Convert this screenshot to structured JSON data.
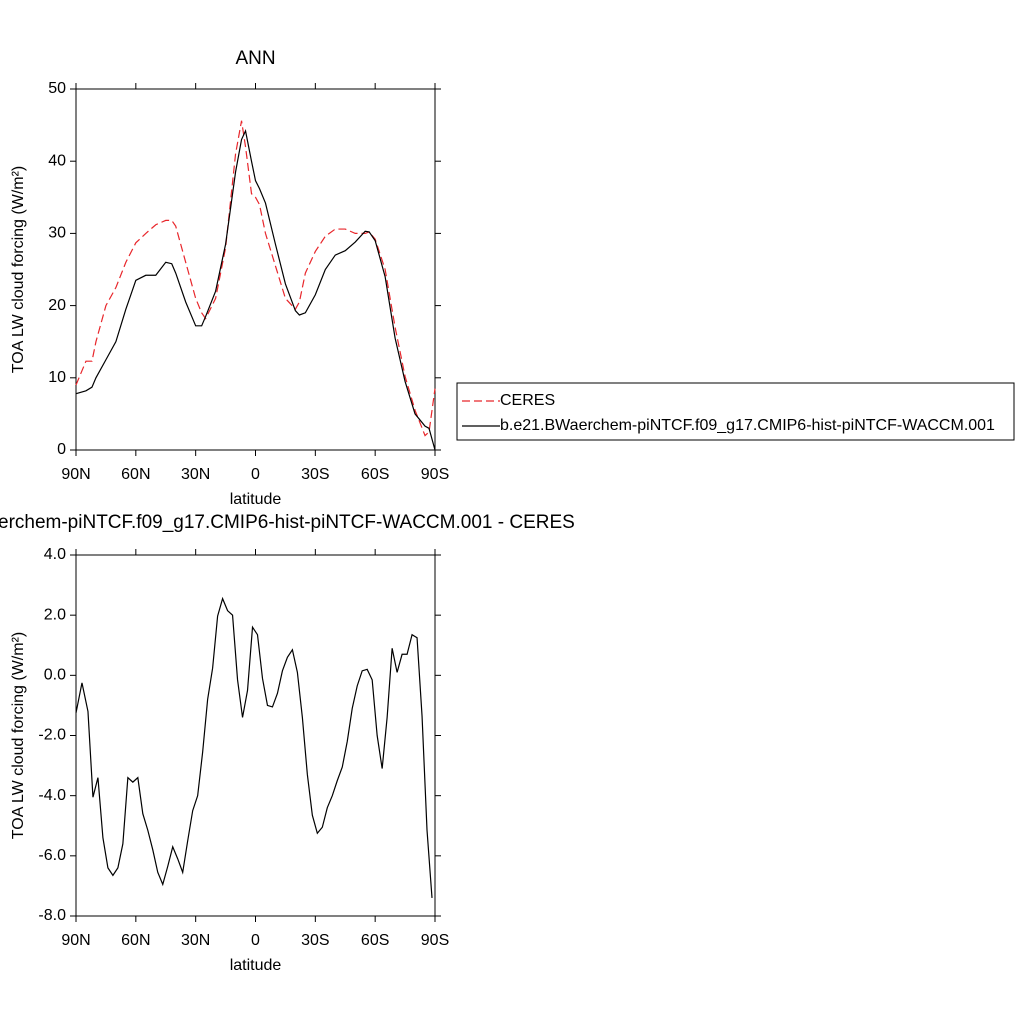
{
  "chart_data": [
    {
      "type": "line",
      "title": "ANN",
      "xlabel": "latitude",
      "ylabel": "TOA LW cloud forcing (W/m²)",
      "x": [
        90,
        85,
        82,
        80,
        75,
        70,
        65,
        60,
        55,
        50,
        45,
        42,
        40,
        35,
        30,
        27,
        25,
        20,
        15,
        10,
        7,
        5,
        2,
        0,
        -2,
        -5,
        -10,
        -15,
        -20,
        -22,
        -25,
        -30,
        -35,
        -40,
        -45,
        -50,
        -55,
        -57,
        -60,
        -65,
        -70,
        -75,
        -80,
        -85,
        -87,
        -90
      ],
      "series": [
        {
          "name": "CERES",
          "color": "#e8262b",
          "line_style": "dashed",
          "values": [
            9,
            12.3,
            12.3,
            15,
            20,
            22.5,
            26,
            28.7,
            30,
            31.2,
            31.8,
            31.8,
            31,
            26,
            21,
            19,
            18.2,
            21,
            28,
            41,
            45.6,
            42,
            35.5,
            35,
            34,
            30,
            25.5,
            21,
            19.5,
            20.5,
            24.5,
            27.5,
            29.6,
            30.6,
            30.6,
            30,
            30,
            30.2,
            29.2,
            25,
            17,
            10.2,
            5.5,
            2,
            2.5,
            8.5
          ]
        },
        {
          "name": "b.e21.BWaerchem-piNTCF.f09_g17.CMIP6-hist-piNTCF-WACCM.001",
          "color": "#000000",
          "line_style": "solid",
          "values": [
            7.8,
            8.2,
            8.7,
            10,
            12.5,
            15,
            19.5,
            23.5,
            24.2,
            24.2,
            26,
            25.8,
            24.5,
            20.5,
            17.2,
            17.2,
            18.5,
            22,
            28.5,
            38.5,
            43,
            44.2,
            40,
            37.3,
            36.2,
            34.2,
            28.5,
            23,
            19.3,
            18.7,
            19,
            21.5,
            25,
            27,
            27.6,
            28.8,
            30.3,
            30.2,
            29,
            24,
            15.5,
            9.5,
            5,
            3.3,
            3,
            0
          ]
        }
      ],
      "xlim": [
        90,
        -90
      ],
      "xticks": [
        {
          "value": 90,
          "label": "90N"
        },
        {
          "value": 60,
          "label": "60N"
        },
        {
          "value": 30,
          "label": "30N"
        },
        0,
        {
          "value": -30,
          "label": "30S"
        },
        {
          "value": -60,
          "label": "60S"
        },
        {
          "value": -90,
          "label": "90S"
        }
      ],
      "ylim": [
        0,
        50
      ],
      "yticks": [
        0,
        10,
        20,
        30,
        40,
        50
      ],
      "legend": "right"
    },
    {
      "type": "line",
      "title": "erchem-piNTCF.f09_g17.CMIP6-hist-piNTCF-WACCM.001 - CERES",
      "xlabel": "latitude",
      "ylabel": "TOA LW cloud forcing (W/m²)",
      "x": [
        90,
        87,
        84,
        81.5,
        79,
        76.5,
        74,
        71.5,
        69,
        66.5,
        64,
        61.5,
        59,
        56.5,
        54,
        51.5,
        49,
        46.5,
        44,
        41.5,
        39,
        36.5,
        34,
        31.5,
        29,
        26.5,
        24,
        21.5,
        19,
        16.5,
        14,
        11.5,
        9,
        6.5,
        4,
        1.5,
        -1,
        -3.5,
        -6,
        -8.5,
        -11,
        -13.5,
        -16,
        -18.5,
        -21,
        -23.5,
        -26,
        -28.5,
        -31,
        -33.5,
        -36,
        -38.5,
        -41,
        -43.5,
        -46,
        -48.5,
        -51,
        -53.5,
        -56,
        -58.5,
        -61,
        -63.5,
        -66,
        -68.5,
        -71,
        -73.5,
        -76,
        -78.5,
        -81,
        -83.5,
        -86,
        -88.5
      ],
      "series": [
        {
          "color": "#000000",
          "line_style": "solid",
          "values": [
            -1.25,
            -0.25,
            -1.2,
            -4.05,
            -3.4,
            -5.4,
            -6.4,
            -6.65,
            -6.4,
            -5.6,
            -3.4,
            -3.55,
            -3.4,
            -4.6,
            -5.15,
            -5.8,
            -6.55,
            -6.95,
            -6.35,
            -5.7,
            -6.1,
            -6.55,
            -5.5,
            -4.5,
            -4.0,
            -2.55,
            -0.8,
            0.24,
            1.97,
            2.55,
            2.15,
            2.0,
            -0.15,
            -1.4,
            -0.5,
            1.6,
            1.35,
            -0.1,
            -1.0,
            -1.05,
            -0.6,
            0.15,
            0.6,
            0.85,
            0.1,
            -1.4,
            -3.3,
            -4.65,
            -5.25,
            -5.05,
            -4.4,
            -4.0,
            -3.5,
            -3.05,
            -2.2,
            -1.1,
            -0.35,
            0.15,
            0.2,
            -0.15,
            -2.0,
            -3.1,
            -1.4,
            0.9,
            0.1,
            0.7,
            0.7,
            1.35,
            1.25,
            -1.35,
            -5.15,
            -7.4
          ]
        }
      ],
      "xlim": [
        90,
        -90
      ],
      "xticks": [
        {
          "value": 90,
          "label": "90N"
        },
        {
          "value": 60,
          "label": "60N"
        },
        {
          "value": 30,
          "label": "30N"
        },
        0,
        {
          "value": -30,
          "label": "30S"
        },
        {
          "value": -60,
          "label": "60S"
        },
        {
          "value": -90,
          "label": "90S"
        }
      ],
      "ylim": [
        -8,
        4
      ],
      "yticks": [
        {
          "value": -8,
          "label": "-8.0"
        },
        {
          "value": -6,
          "label": "-6.0"
        },
        {
          "value": -4,
          "label": "-4.0"
        },
        {
          "value": -2,
          "label": "-2.0"
        },
        {
          "value": 0,
          "label": "0.0"
        },
        {
          "value": 2,
          "label": "2.0"
        },
        {
          "value": 4,
          "label": "4.0"
        }
      ]
    }
  ]
}
